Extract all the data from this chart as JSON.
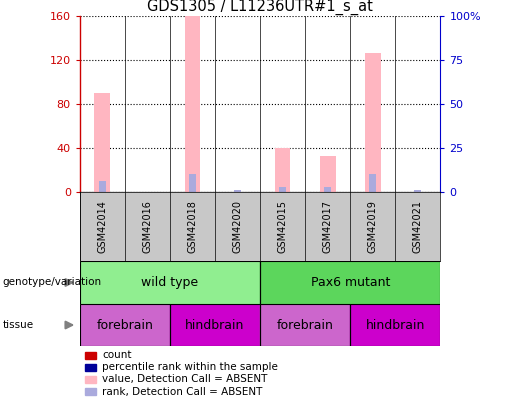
{
  "title": "GDS1305 / L11236UTR#1_s_at",
  "samples": [
    "GSM42014",
    "GSM42016",
    "GSM42018",
    "GSM42020",
    "GSM42015",
    "GSM42017",
    "GSM42019",
    "GSM42021"
  ],
  "pink_bar_values": [
    90,
    0,
    160,
    0,
    40,
    33,
    127,
    0
  ],
  "blue_bar_values": [
    10,
    0,
    17,
    2,
    5,
    5,
    17,
    2
  ],
  "ylim_left": [
    0,
    160
  ],
  "ylim_right": [
    0,
    100
  ],
  "yticks_left": [
    0,
    40,
    80,
    120,
    160
  ],
  "yticks_right": [
    0,
    25,
    50,
    75,
    100
  ],
  "yticklabels_right": [
    "0",
    "25",
    "50",
    "75",
    "100%"
  ],
  "genotype_groups": [
    {
      "label": "wild type",
      "start": 0,
      "end": 4,
      "color": "#90EE90"
    },
    {
      "label": "Pax6 mutant",
      "start": 4,
      "end": 8,
      "color": "#5CD65C"
    }
  ],
  "tissue_groups": [
    {
      "label": "forebrain",
      "start": 0,
      "end": 2,
      "color": "#CC66CC"
    },
    {
      "label": "hindbrain",
      "start": 2,
      "end": 4,
      "color": "#CC00CC"
    },
    {
      "label": "forebrain",
      "start": 4,
      "end": 6,
      "color": "#CC66CC"
    },
    {
      "label": "hindbrain",
      "start": 6,
      "end": 8,
      "color": "#CC00CC"
    }
  ],
  "legend_items": [
    {
      "label": "count",
      "color": "#CC0000"
    },
    {
      "label": "percentile rank within the sample",
      "color": "#000099"
    },
    {
      "label": "value, Detection Call = ABSENT",
      "color": "#FFB6C1"
    },
    {
      "label": "rank, Detection Call = ABSENT",
      "color": "#AAAADD"
    }
  ],
  "bar_width": 0.35,
  "pink_color": "#FFB6C1",
  "blue_color": "#AAAADD",
  "left_axis_color": "#CC0000",
  "right_axis_color": "#0000CC",
  "sample_box_color": "#C8C8C8"
}
